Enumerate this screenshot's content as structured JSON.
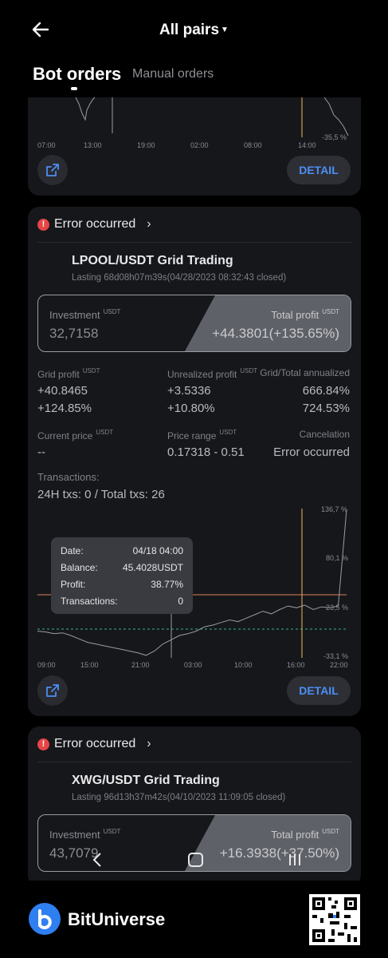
{
  "header": {
    "title": "All pairs",
    "tabs": [
      {
        "label": "Bot orders",
        "active": true
      },
      {
        "label": "Manual orders",
        "active": false
      }
    ]
  },
  "card1": {
    "y_tick_label": "-35,5 %",
    "x_ticks": [
      "07:00",
      "13:00",
      "19:00",
      "02:00",
      "08:00",
      "14:00"
    ],
    "detail_label": "DETAIL"
  },
  "card2": {
    "status": "Error occurred",
    "pair": "LPOOL/USDT Grid Trading",
    "lasting": "Lasting 68d08h07m39s(04/28/2023 08:32:43 closed)",
    "investment": {
      "label": "Investment",
      "unit": "USDT",
      "value": "32,7158"
    },
    "total_profit": {
      "label": "Total profit",
      "unit": "USDT",
      "value": "+44.3801(+135.65%)"
    },
    "grid_profit": {
      "label": "Grid profit",
      "unit": "USDT",
      "value": "+40.8465",
      "pct": "+124.85%"
    },
    "unrealized_profit": {
      "label": "Unrealized profit",
      "unit": "USDT",
      "value": "+3.5336",
      "pct": "+10.80%"
    },
    "annualized": {
      "label": "Grid/Total annualized",
      "grid": "666.84%",
      "total": "724.53%"
    },
    "current_price": {
      "label": "Current price",
      "unit": "USDT",
      "value": "--"
    },
    "price_range": {
      "label": "Price range",
      "unit": "USDT",
      "value": "0.17318 - 0.51"
    },
    "cancelation": {
      "label": "Cancelation",
      "value": "Error occurred"
    },
    "transactions": {
      "label": "Transactions:",
      "value": "24H txs: 0 / Total txs: 26"
    },
    "tooltip": {
      "rows": [
        {
          "label": "Date:",
          "value": "04/18 04:00"
        },
        {
          "label": "Balance:",
          "value": "45.4028USDT"
        },
        {
          "label": "Profit:",
          "value": "38.77%"
        },
        {
          "label": "Transactions:",
          "value": "0"
        }
      ]
    },
    "detail_label": "DETAIL"
  },
  "card3": {
    "status": "Error occurred",
    "pair": "XWG/USDT Grid Trading",
    "lasting": "Lasting 96d13h37m42s(04/10/2023 11:09:05 closed)",
    "investment": {
      "label": "Investment",
      "unit": "USDT",
      "value": "43,7079"
    },
    "total_profit": {
      "label": "Total profit",
      "unit": "USDT",
      "value": "+16.3938(+37.50%)"
    }
  },
  "footer": {
    "brand": "BitUniverse"
  },
  "chart_data": {
    "type": "line",
    "x_ticks": [
      "09:00",
      "15:00",
      "21:00",
      "03:00",
      "10:00",
      "16:00",
      "22:00"
    ],
    "y_ticks": [
      "136,7 %",
      "80,1 %",
      "23,5 %",
      "-33,1 %"
    ],
    "series": [
      {
        "values": [
          -5,
          -6,
          -8,
          -7,
          -10,
          -14,
          -18,
          -20,
          -22,
          -24,
          -26,
          -28,
          -30,
          -33,
          -28,
          -20,
          -15,
          -10,
          -8,
          -5,
          0,
          2,
          5,
          8,
          6,
          10,
          14,
          18,
          15,
          20,
          24,
          22,
          25,
          20,
          23,
          22,
          24,
          135
        ]
      }
    ],
    "colors": {
      "line": "#9a9ca2",
      "upper": "#e0835a",
      "lower": "#2fb98a",
      "marker": "#e8b860"
    }
  }
}
